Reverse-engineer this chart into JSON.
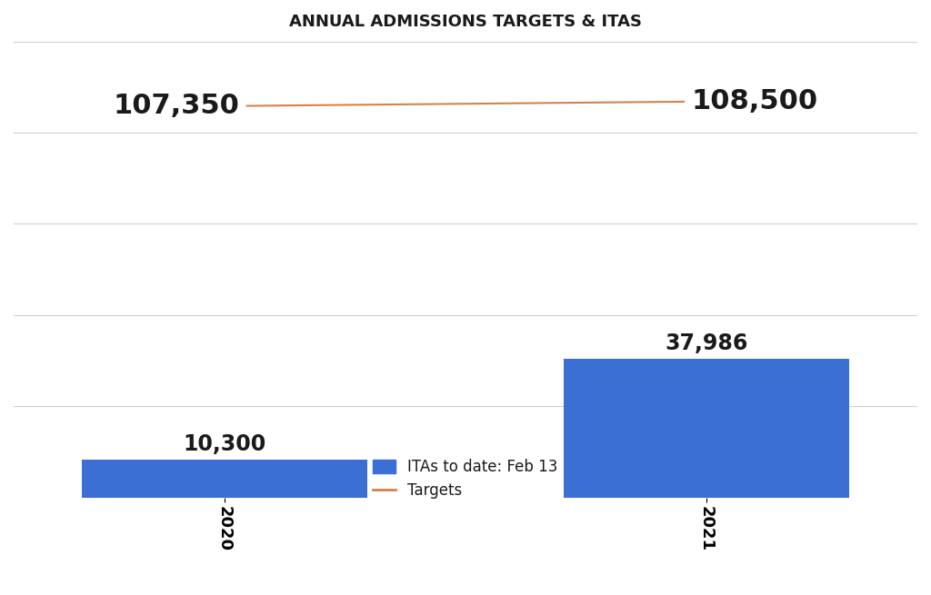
{
  "title": "ANNUAL ADMISSIONS TARGETS & ITAS",
  "categories": [
    "2020",
    "2021"
  ],
  "bar_values": [
    10300,
    37986
  ],
  "bar_labels": [
    "10,300",
    "37,986"
  ],
  "target_values": [
    107350,
    108500
  ],
  "target_labels": [
    "107,350",
    "108,500"
  ],
  "bar_color": "#3B6FD4",
  "target_line_color": "#D4824A",
  "background_color": "#FFFFFF",
  "ylim": [
    0,
    125000
  ],
  "bar_width": 0.38,
  "legend_bar_label": "ITAs to date: Feb 13",
  "legend_line_label": "Targets",
  "title_fontsize": 13,
  "bar_label_fontsize": 17,
  "target_label_fontsize": 22,
  "tick_fontsize": 13,
  "x_positions": [
    0.18,
    0.82
  ]
}
